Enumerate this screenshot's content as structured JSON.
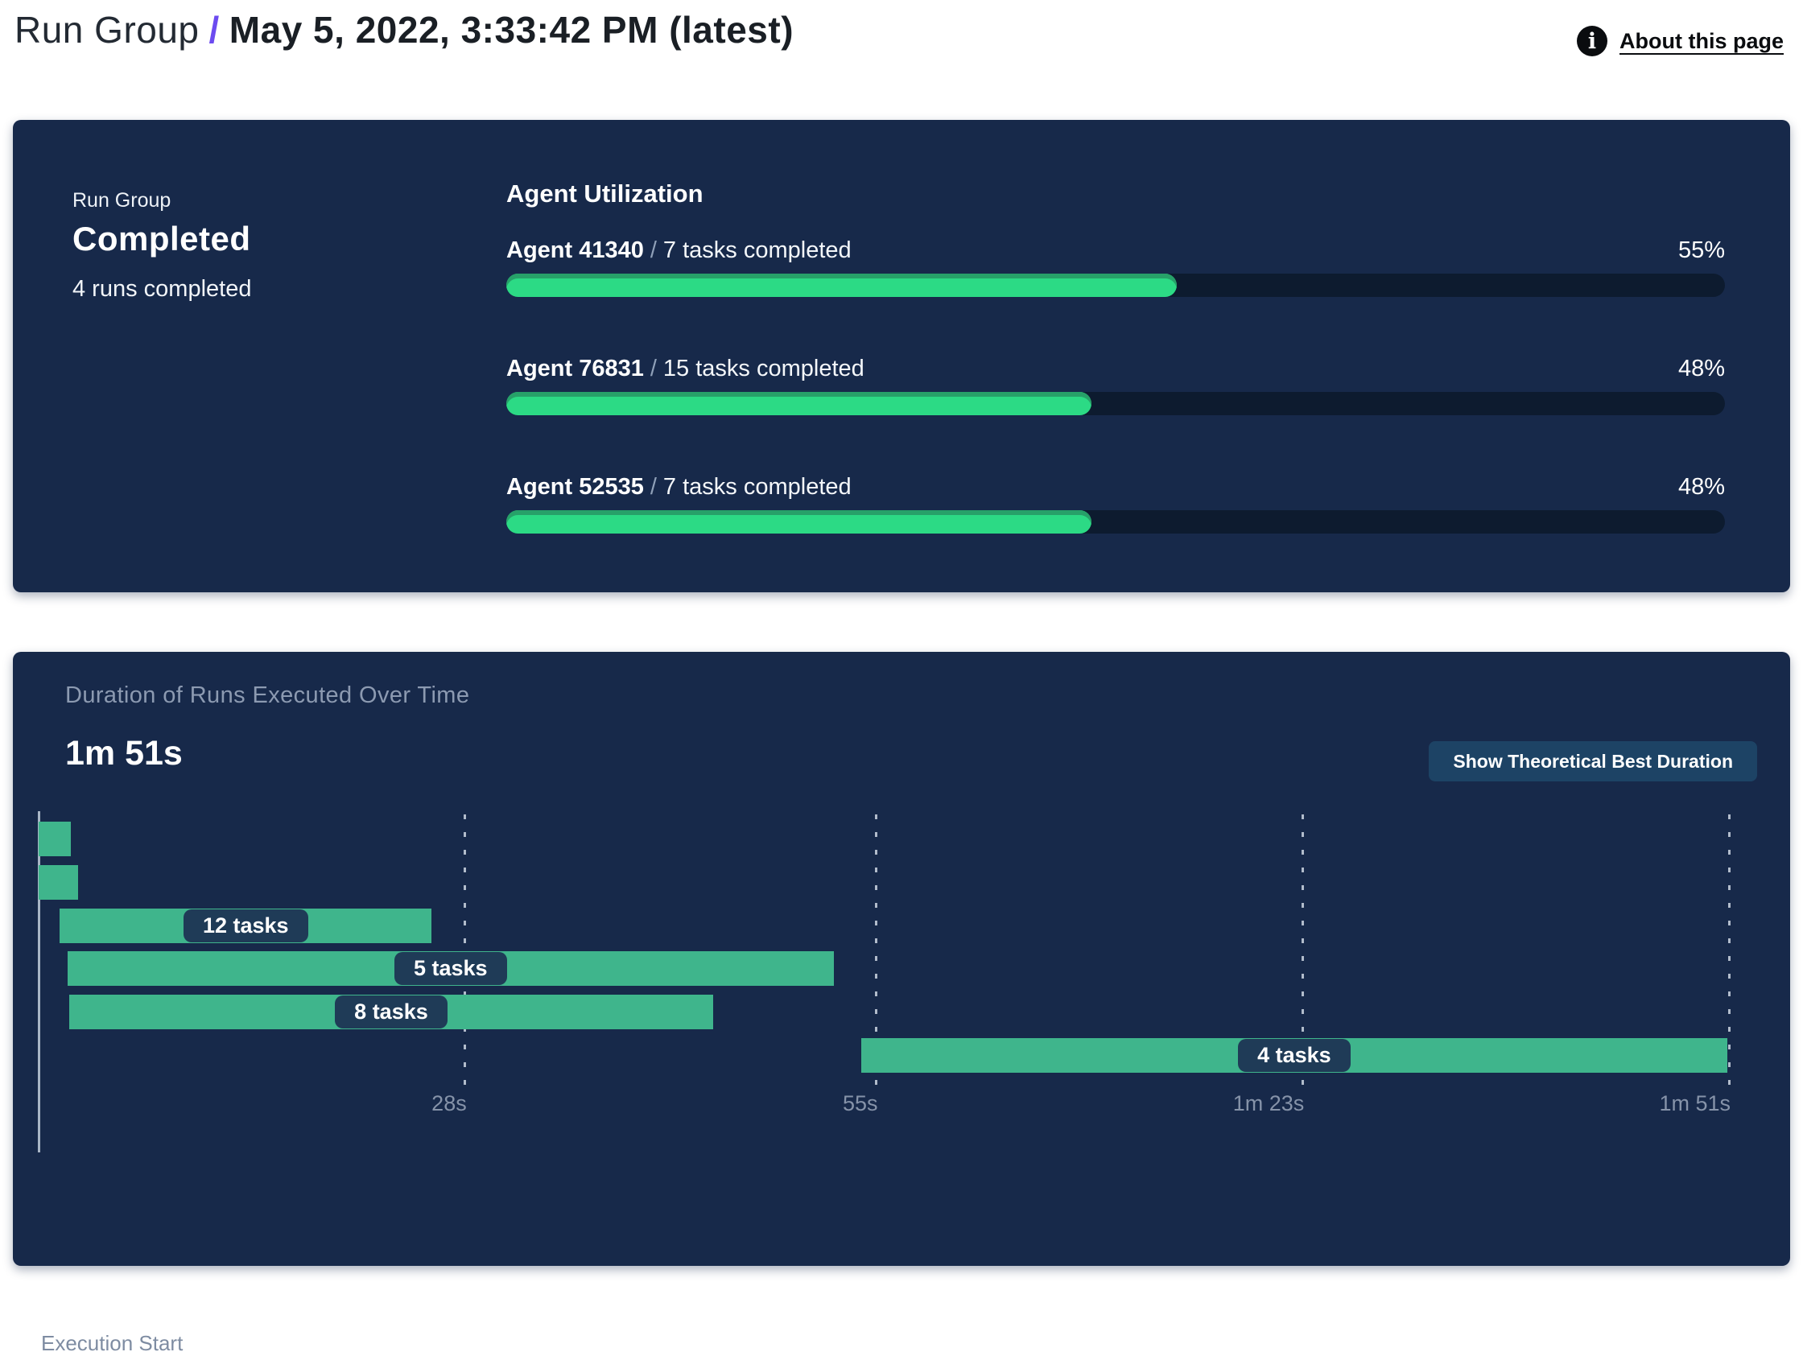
{
  "header": {
    "breadcrumb_group": "Run Group",
    "separator": "/",
    "title": "May 5, 2022, 3:33:42 PM (latest)",
    "about_link": "About this page",
    "info_icon_glyph": "i"
  },
  "summary_panel": {
    "label": "Run Group",
    "status": "Completed",
    "runs_completed": "4 runs completed",
    "section_title": "Agent Utilization",
    "separator": "/",
    "agents": [
      {
        "name": "Agent 41340",
        "tasks": "7 tasks completed",
        "percent": "55%",
        "value": 55
      },
      {
        "name": "Agent 76831",
        "tasks": "15 tasks completed",
        "percent": "48%",
        "value": 48
      },
      {
        "name": "Agent 52535",
        "tasks": "7 tasks completed",
        "percent": "48%",
        "value": 48
      }
    ]
  },
  "duration_panel": {
    "title": "Duration of Runs Executed Over Time",
    "total_duration": "1m 51s",
    "button_label": "Show Theoretical Best Duration",
    "execution_start_label": "Execution Start"
  },
  "chart_data": {
    "type": "gantt",
    "title": "Duration of Runs Executed Over Time",
    "total_duration_label": "1m 51s",
    "x_axis": {
      "range_seconds": [
        0,
        111
      ],
      "ticks": [
        {
          "label": "28s",
          "seconds": 28
        },
        {
          "label": "55s",
          "seconds": 55
        },
        {
          "label": "1m 23s",
          "seconds": 83
        },
        {
          "label": "1m 51s",
          "seconds": 111
        }
      ]
    },
    "bars": [
      {
        "run": 1,
        "start_s": 0.0,
        "end_s": 2.1,
        "label": ""
      },
      {
        "run": 2,
        "start_s": 0.0,
        "end_s": 2.6,
        "label": ""
      },
      {
        "run": 3,
        "start_s": 1.4,
        "end_s": 25.8,
        "label": "12 tasks"
      },
      {
        "run": 4,
        "start_s": 1.9,
        "end_s": 52.2,
        "label": "5 tasks"
      },
      {
        "run": 5,
        "start_s": 2.0,
        "end_s": 44.3,
        "label": "8 tasks"
      },
      {
        "run": 6,
        "start_s": 54.0,
        "end_s": 110.9,
        "label": "4 tasks"
      }
    ],
    "legend": null,
    "grid": "dashed-vertical"
  },
  "colors": {
    "panel_bg": "#17294a",
    "progress_fill": "#2cda85",
    "progress_fill_shade": "#27a169",
    "progress_track": "#0d1b2f",
    "gantt_bar": "#3fb58c",
    "pill_bg": "#1f3b57",
    "button_bg": "#1d4365",
    "breadcrumb_slash": "#6c4bf0",
    "muted_text": "#8c9ab1"
  }
}
